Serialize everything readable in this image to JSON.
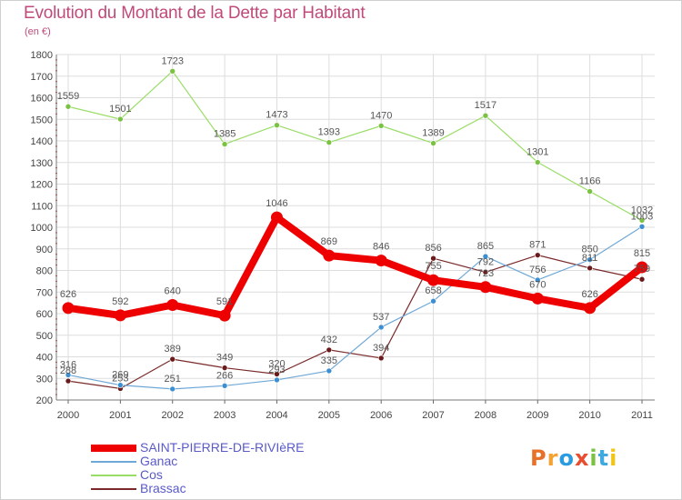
{
  "title": "Evolution du Montant de la Dette par Habitant",
  "unit": "(en €)",
  "logo": {
    "text": "Proxiti",
    "colors": [
      "#e8712a",
      "#f3a333",
      "#2a9be0",
      "#e84d2f",
      "#7cc242",
      "#3fa9e0",
      "#f0c419"
    ]
  },
  "chart_data": {
    "type": "line",
    "title": "Evolution du Montant de la Dette par Habitant",
    "ylabel": "(en €)",
    "xlabel": "",
    "ylim": [
      200,
      1800
    ],
    "yticks": [
      "200",
      "300",
      "400",
      "500",
      "600",
      "700",
      "800",
      "900",
      "1000",
      "1100",
      "1200",
      "1300",
      "1400",
      "1500",
      "1600",
      "1700",
      "1800"
    ],
    "categories": [
      "2000",
      "2001",
      "2002",
      "2003",
      "2004",
      "2005",
      "2006",
      "2007",
      "2008",
      "2009",
      "2010",
      "2011"
    ],
    "grid": true,
    "legend": "bottom-left",
    "series": [
      {
        "name": "Brassac",
        "color": "#7a2a2a",
        "marker": "#6a1a1a",
        "width": 1.2,
        "values": [
          288,
          253,
          389,
          349,
          320,
          432,
          394,
          856,
          792,
          871,
          811,
          759
        ],
        "labels": [
          "288",
          "253",
          "389",
          "349",
          "320",
          "432",
          "394",
          "856",
          "792",
          "871",
          "811",
          "759"
        ]
      },
      {
        "name": "Ganac",
        "color": "#6fa8d6",
        "marker": "#3d8fd1",
        "width": 1.2,
        "values": [
          316,
          269,
          251,
          266,
          293,
          335,
          537,
          658,
          865,
          756,
          850,
          1003
        ],
        "labels": [
          "316",
          "269",
          "251",
          "266",
          "293",
          "335",
          "537",
          "658",
          "865",
          "756",
          "850",
          "1003"
        ]
      },
      {
        "name": "Cos",
        "color": "#99dd66",
        "marker": "#7cc242",
        "width": 1.2,
        "values": [
          1559,
          1501,
          1723,
          1385,
          1473,
          1393,
          1470,
          1389,
          1517,
          1301,
          1166,
          1032
        ],
        "labels": [
          "1559",
          "1501",
          "1723",
          "1385",
          "1473",
          "1393",
          "1470",
          "1389",
          "1517",
          "1301",
          "1166",
          "1032"
        ]
      },
      {
        "name": "SAINT-PIERRE-DE-RIVIèRE",
        "color": "#ee0000",
        "marker": "#ee0000",
        "width": 8,
        "values": [
          626,
          592,
          640,
          591,
          1046,
          869,
          846,
          755,
          723,
          670,
          626,
          815
        ],
        "labels": [
          "626",
          "592",
          "640",
          "591",
          "1046",
          "869",
          "846",
          "755",
          "723",
          "670",
          "626",
          "815"
        ]
      }
    ]
  },
  "legend_order": [
    3,
    1,
    2,
    0
  ]
}
